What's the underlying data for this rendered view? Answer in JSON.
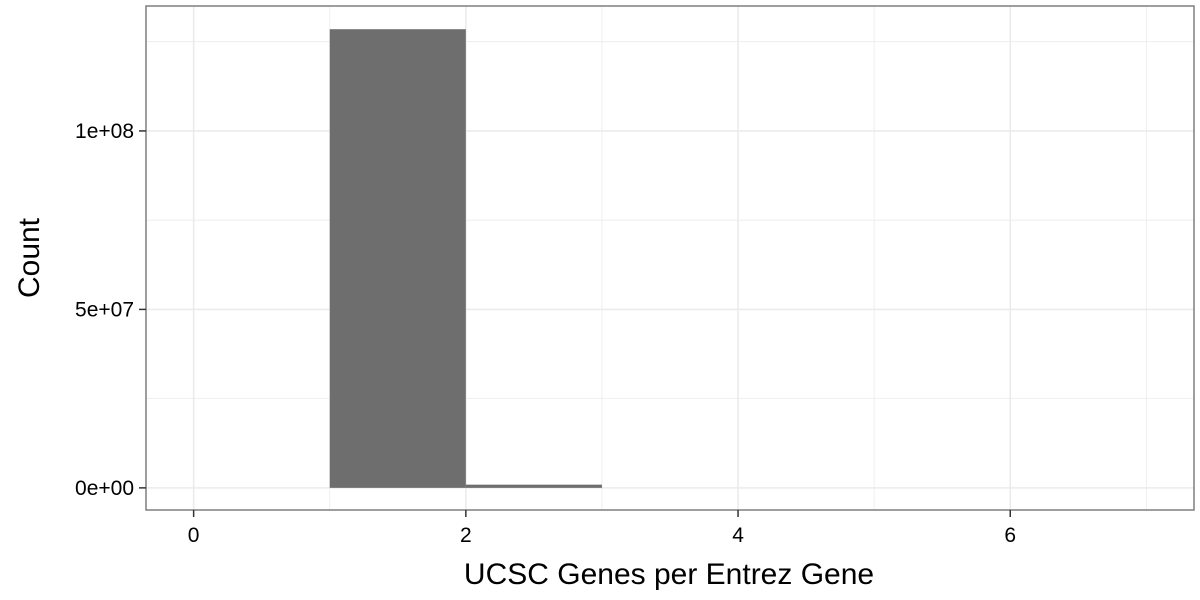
{
  "chart_data": {
    "type": "bar",
    "title": "",
    "xlabel": "UCSC Genes per Entrez Gene",
    "ylabel": "Count",
    "xlim": [
      -0.35,
      7.35
    ],
    "ylim": [
      -6200000,
      135000000
    ],
    "x_ticks": [
      0,
      2,
      4,
      6
    ],
    "x_tick_labels": [
      "0",
      "2",
      "4",
      "6"
    ],
    "y_ticks": [
      0,
      50000000,
      100000000
    ],
    "y_tick_labels": [
      "0e+00",
      "5e+07",
      "1e+08"
    ],
    "grid": true,
    "legend": "none",
    "bins": [
      {
        "x_start": 1,
        "x_end": 2,
        "value": 128500000
      },
      {
        "x_start": 2,
        "x_end": 3,
        "value": 900000
      },
      {
        "x_start": 3,
        "x_end": 4,
        "value": 0
      },
      {
        "x_start": 4,
        "x_end": 5,
        "value": 0
      },
      {
        "x_start": 5,
        "x_end": 6,
        "value": 0
      },
      {
        "x_start": 6,
        "x_end": 7,
        "value": 0
      }
    ],
    "bar_color": "#6e6e6e",
    "panel_border_color": "#7f7f7f",
    "grid_color": "#ebebeb"
  }
}
